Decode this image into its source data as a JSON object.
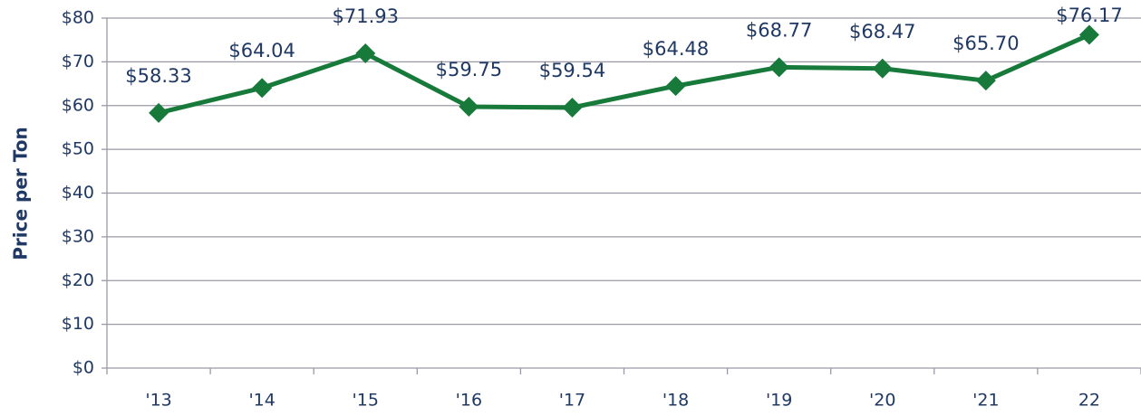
{
  "chart_data": {
    "type": "line",
    "y_label": "Price per Ton",
    "categories": [
      "'13",
      "'14",
      "'15",
      "'16",
      "'17",
      "'18",
      "'19",
      "'20",
      "'21",
      "22"
    ],
    "series": [
      {
        "name": "Price per Ton",
        "color": "#177a3b",
        "values": [
          58.33,
          64.04,
          71.93,
          59.75,
          59.54,
          64.48,
          68.77,
          68.47,
          65.7,
          76.17
        ],
        "value_labels": [
          "$58.33",
          "$64.04",
          "$71.93",
          "$59.75",
          "$59.54",
          "$64.48",
          "$68.77",
          "$68.47",
          "$65.70",
          "$76.17"
        ]
      }
    ],
    "ylim": [
      0,
      80
    ],
    "yticks": [
      {
        "value": 0,
        "label": "$0"
      },
      {
        "value": 10,
        "label": "$10"
      },
      {
        "value": 20,
        "label": "$20"
      },
      {
        "value": 30,
        "label": "$30"
      },
      {
        "value": 40,
        "label": "$40"
      },
      {
        "value": 50,
        "label": "$50"
      },
      {
        "value": 60,
        "label": "$60"
      },
      {
        "value": 70,
        "label": "$70"
      },
      {
        "value": 80,
        "label": "$80"
      }
    ],
    "grid": true
  }
}
